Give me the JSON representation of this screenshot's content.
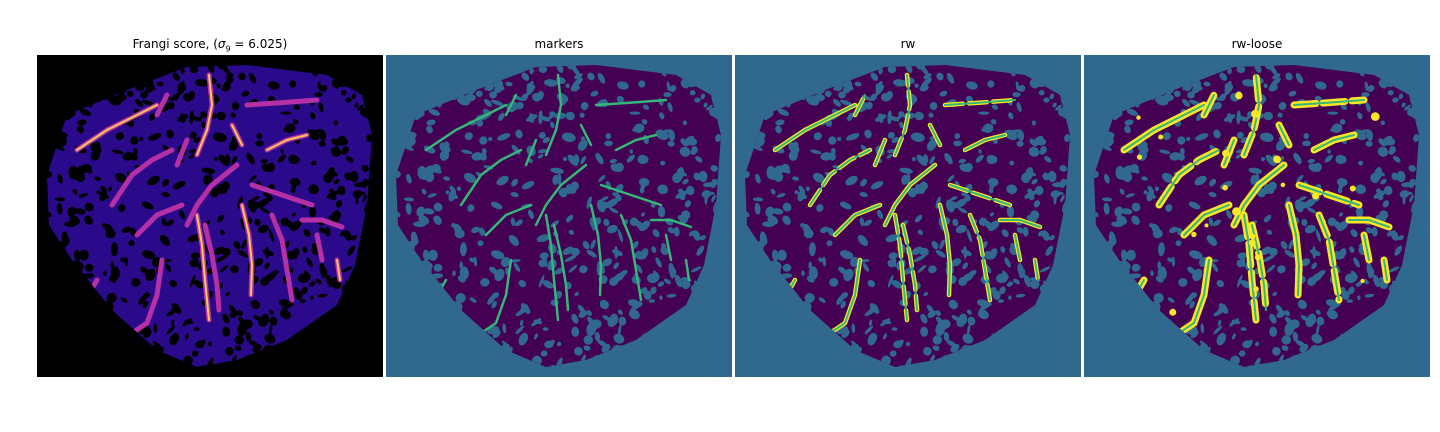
{
  "panels": [
    {
      "title_prefix": "Frangi score, (",
      "title_symbol": "σ",
      "title_sub": "9",
      "title_suffix": " = 6.025)",
      "background": "#000000",
      "kind": "frangi"
    },
    {
      "title": "markers",
      "background": "#31688e",
      "kind": "markers"
    },
    {
      "title": "rw",
      "background": "#31688e",
      "kind": "rw"
    },
    {
      "title": "rw-loose",
      "background": "#31688e",
      "kind": "rw-loose"
    }
  ],
  "colors": {
    "background_class": "#31688e",
    "tissue_class": "#440154",
    "marker_class": "#35b779",
    "segmented_class": "#fde725",
    "frangi_low": "#2a0a8a",
    "frangi_mid": "#b52fa6",
    "frangi_high": "#f9c857"
  }
}
